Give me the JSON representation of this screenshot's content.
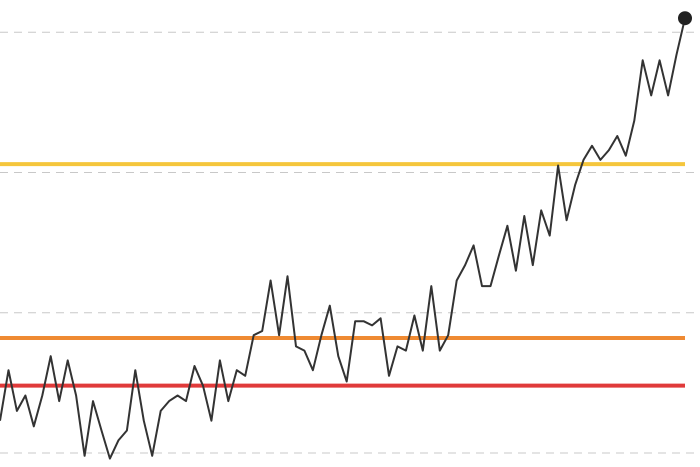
{
  "chart_data": {
    "type": "line",
    "values": [
      0.23,
      0.59,
      0.3,
      0.41,
      0.19,
      0.41,
      0.69,
      0.37,
      0.66,
      0.41,
      -0.02,
      0.37,
      0.16,
      -0.04,
      0.09,
      0.16,
      0.59,
      0.23,
      -0.02,
      0.3,
      0.37,
      0.41,
      0.37,
      0.62,
      0.48,
      0.23,
      0.66,
      0.37,
      0.59,
      0.55,
      0.84,
      0.87,
      1.23,
      0.84,
      1.26,
      0.76,
      0.73,
      0.59,
      0.84,
      1.05,
      0.69,
      0.51,
      0.94,
      0.94,
      0.91,
      0.96,
      0.55,
      0.76,
      0.73,
      0.98,
      0.73,
      1.19,
      0.73,
      0.84,
      1.23,
      1.34,
      1.48,
      1.19,
      1.19,
      1.41,
      1.62,
      1.3,
      1.69,
      1.34,
      1.73,
      1.55,
      2.05,
      1.66,
      1.91,
      2.09,
      2.19,
      2.09,
      2.16,
      2.26,
      2.12,
      2.37,
      2.8,
      2.55,
      2.8,
      2.55,
      2.84,
      3.1
    ],
    "color": "#333333",
    "ylim": [
      -0.1,
      3.23
    ],
    "yticks": [
      0,
      1,
      2,
      3
    ],
    "grid": true,
    "reference_lines": [
      {
        "value": 2.06,
        "color": "#f5c63c"
      },
      {
        "value": 0.82,
        "color": "#ef8a32"
      },
      {
        "value": 0.48,
        "color": "#e03a3a"
      }
    ]
  }
}
